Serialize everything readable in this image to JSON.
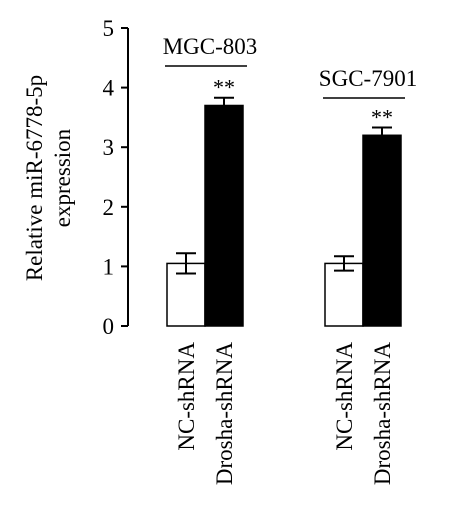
{
  "chart_data": {
    "type": "bar",
    "ylabel_lines": [
      "Relative miR-6778-5p",
      "expression"
    ],
    "ylim": [
      0,
      5
    ],
    "yticks": [
      0,
      1,
      2,
      3,
      4,
      5
    ],
    "grid": false,
    "legend": "none",
    "colors": {
      "NC-shRNA": "#ffffff",
      "Drosha-shRNA": "#000000",
      "outline": "#000000"
    },
    "groups": [
      {
        "name": "MGC-803",
        "categories": [
          "NC-shRNA",
          "Drosha-shRNA"
        ],
        "values": [
          1.05,
          3.7
        ],
        "errors": [
          0.17,
          0.13
        ],
        "significance": "**"
      },
      {
        "name": "SGC-7901",
        "categories": [
          "NC-shRNA",
          "Drosha-shRNA"
        ],
        "values": [
          1.05,
          3.2
        ],
        "errors": [
          0.12,
          0.13
        ],
        "significance": "**"
      }
    ]
  }
}
